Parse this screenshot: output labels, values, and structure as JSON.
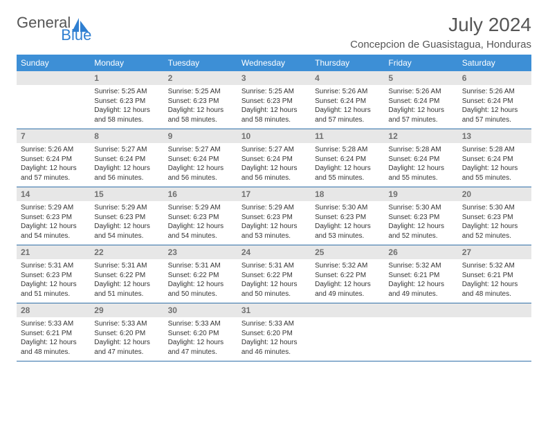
{
  "brand": {
    "word1": "General",
    "word2": "Blue"
  },
  "title": "July 2024",
  "location": "Concepcion de Guasistagua, Honduras",
  "colors": {
    "header_bg": "#3d8fd6",
    "header_text": "#ffffff",
    "daynum_bg": "#e7e7e7",
    "daynum_text": "#707070",
    "row_border": "#2f6fa8",
    "body_text": "#333333",
    "title_text": "#555555",
    "brand_blue": "#2f7fd1"
  },
  "fonts": {
    "title_pt": 28,
    "location_pt": 15,
    "weekday_pt": 12,
    "daynum_pt": 12,
    "cell_pt": 10
  },
  "weekdays": [
    "Sunday",
    "Monday",
    "Tuesday",
    "Wednesday",
    "Thursday",
    "Friday",
    "Saturday"
  ],
  "start_offset": 1,
  "days": [
    {
      "n": 1,
      "sunrise": "5:25 AM",
      "sunset": "6:23 PM",
      "daylight": "12 hours and 58 minutes."
    },
    {
      "n": 2,
      "sunrise": "5:25 AM",
      "sunset": "6:23 PM",
      "daylight": "12 hours and 58 minutes."
    },
    {
      "n": 3,
      "sunrise": "5:25 AM",
      "sunset": "6:23 PM",
      "daylight": "12 hours and 58 minutes."
    },
    {
      "n": 4,
      "sunrise": "5:26 AM",
      "sunset": "6:24 PM",
      "daylight": "12 hours and 57 minutes."
    },
    {
      "n": 5,
      "sunrise": "5:26 AM",
      "sunset": "6:24 PM",
      "daylight": "12 hours and 57 minutes."
    },
    {
      "n": 6,
      "sunrise": "5:26 AM",
      "sunset": "6:24 PM",
      "daylight": "12 hours and 57 minutes."
    },
    {
      "n": 7,
      "sunrise": "5:26 AM",
      "sunset": "6:24 PM",
      "daylight": "12 hours and 57 minutes."
    },
    {
      "n": 8,
      "sunrise": "5:27 AM",
      "sunset": "6:24 PM",
      "daylight": "12 hours and 56 minutes."
    },
    {
      "n": 9,
      "sunrise": "5:27 AM",
      "sunset": "6:24 PM",
      "daylight": "12 hours and 56 minutes."
    },
    {
      "n": 10,
      "sunrise": "5:27 AM",
      "sunset": "6:24 PM",
      "daylight": "12 hours and 56 minutes."
    },
    {
      "n": 11,
      "sunrise": "5:28 AM",
      "sunset": "6:24 PM",
      "daylight": "12 hours and 55 minutes."
    },
    {
      "n": 12,
      "sunrise": "5:28 AM",
      "sunset": "6:24 PM",
      "daylight": "12 hours and 55 minutes."
    },
    {
      "n": 13,
      "sunrise": "5:28 AM",
      "sunset": "6:24 PM",
      "daylight": "12 hours and 55 minutes."
    },
    {
      "n": 14,
      "sunrise": "5:29 AM",
      "sunset": "6:23 PM",
      "daylight": "12 hours and 54 minutes."
    },
    {
      "n": 15,
      "sunrise": "5:29 AM",
      "sunset": "6:23 PM",
      "daylight": "12 hours and 54 minutes."
    },
    {
      "n": 16,
      "sunrise": "5:29 AM",
      "sunset": "6:23 PM",
      "daylight": "12 hours and 54 minutes."
    },
    {
      "n": 17,
      "sunrise": "5:29 AM",
      "sunset": "6:23 PM",
      "daylight": "12 hours and 53 minutes."
    },
    {
      "n": 18,
      "sunrise": "5:30 AM",
      "sunset": "6:23 PM",
      "daylight": "12 hours and 53 minutes."
    },
    {
      "n": 19,
      "sunrise": "5:30 AM",
      "sunset": "6:23 PM",
      "daylight": "12 hours and 52 minutes."
    },
    {
      "n": 20,
      "sunrise": "5:30 AM",
      "sunset": "6:23 PM",
      "daylight": "12 hours and 52 minutes."
    },
    {
      "n": 21,
      "sunrise": "5:31 AM",
      "sunset": "6:23 PM",
      "daylight": "12 hours and 51 minutes."
    },
    {
      "n": 22,
      "sunrise": "5:31 AM",
      "sunset": "6:22 PM",
      "daylight": "12 hours and 51 minutes."
    },
    {
      "n": 23,
      "sunrise": "5:31 AM",
      "sunset": "6:22 PM",
      "daylight": "12 hours and 50 minutes."
    },
    {
      "n": 24,
      "sunrise": "5:31 AM",
      "sunset": "6:22 PM",
      "daylight": "12 hours and 50 minutes."
    },
    {
      "n": 25,
      "sunrise": "5:32 AM",
      "sunset": "6:22 PM",
      "daylight": "12 hours and 49 minutes."
    },
    {
      "n": 26,
      "sunrise": "5:32 AM",
      "sunset": "6:21 PM",
      "daylight": "12 hours and 49 minutes."
    },
    {
      "n": 27,
      "sunrise": "5:32 AM",
      "sunset": "6:21 PM",
      "daylight": "12 hours and 48 minutes."
    },
    {
      "n": 28,
      "sunrise": "5:33 AM",
      "sunset": "6:21 PM",
      "daylight": "12 hours and 48 minutes."
    },
    {
      "n": 29,
      "sunrise": "5:33 AM",
      "sunset": "6:20 PM",
      "daylight": "12 hours and 47 minutes."
    },
    {
      "n": 30,
      "sunrise": "5:33 AM",
      "sunset": "6:20 PM",
      "daylight": "12 hours and 47 minutes."
    },
    {
      "n": 31,
      "sunrise": "5:33 AM",
      "sunset": "6:20 PM",
      "daylight": "12 hours and 46 minutes."
    }
  ],
  "labels": {
    "sunrise": "Sunrise:",
    "sunset": "Sunset:",
    "daylight": "Daylight:"
  }
}
